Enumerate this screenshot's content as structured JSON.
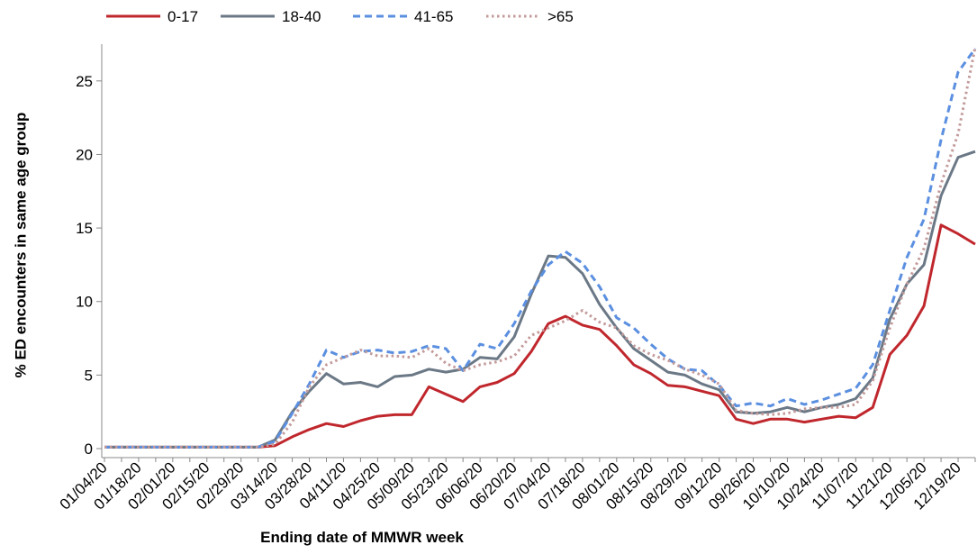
{
  "chart_data": {
    "type": "line",
    "x_label": "Ending date of MMWR week",
    "y_label": "% ED encounters in same age group",
    "categories": [
      "01/04/20",
      null,
      "01/18/20",
      null,
      "02/01/20",
      null,
      "02/15/20",
      null,
      "02/29/20",
      null,
      "03/14/20",
      null,
      "03/28/20",
      null,
      "04/11/20",
      null,
      "04/25/20",
      null,
      "05/09/20",
      null,
      "05/23/20",
      null,
      "06/06/20",
      null,
      "06/20/20",
      null,
      "07/04/20",
      null,
      "07/18/20",
      null,
      "08/01/20",
      null,
      "08/15/20",
      null,
      "08/29/20",
      null,
      "09/12/20",
      null,
      "09/26/20",
      null,
      "10/10/20",
      null,
      "10/24/20",
      null,
      "11/07/20",
      null,
      "11/21/20",
      null,
      "12/05/20",
      null,
      "12/19/20",
      null
    ],
    "series": [
      {
        "name": "0-17",
        "color": "#c0272d",
        "style": "solid",
        "values": [
          0.1,
          0.1,
          0.1,
          0.1,
          0.1,
          0.1,
          0.1,
          0.1,
          0.1,
          0.1,
          0.2,
          0.8,
          1.3,
          1.7,
          1.5,
          1.9,
          2.2,
          2.3,
          2.3,
          4.2,
          3.7,
          3.2,
          4.2,
          4.5,
          5.1,
          6.6,
          8.5,
          9.0,
          8.4,
          8.1,
          7.0,
          5.7,
          5.1,
          4.3,
          4.2,
          3.9,
          3.6,
          2.0,
          1.7,
          2.0,
          2.0,
          1.8,
          2.0,
          2.2,
          2.1,
          2.8,
          6.4,
          7.7,
          9.7,
          15.2,
          14.6,
          13.9
        ]
      },
      {
        "name": "18-40",
        "color": "#6b7886",
        "style": "solid",
        "values": [
          0.1,
          0.1,
          0.1,
          0.1,
          0.1,
          0.1,
          0.1,
          0.1,
          0.1,
          0.1,
          0.6,
          2.5,
          3.9,
          5.1,
          4.4,
          4.5,
          4.2,
          4.9,
          5.0,
          5.4,
          5.2,
          5.4,
          6.2,
          6.1,
          7.6,
          10.5,
          13.1,
          13.0,
          11.9,
          9.8,
          8.2,
          6.8,
          6.0,
          5.2,
          5.0,
          4.4,
          4.0,
          2.5,
          2.4,
          2.5,
          2.8,
          2.5,
          2.8,
          3.0,
          3.4,
          4.8,
          8.8,
          11.2,
          12.5,
          17.2,
          19.8,
          20.2
        ]
      },
      {
        "name": "41-65",
        "color": "#5b8fe0",
        "style": "dashed",
        "values": [
          0.1,
          0.1,
          0.1,
          0.1,
          0.1,
          0.1,
          0.1,
          0.1,
          0.1,
          0.1,
          0.5,
          2.4,
          4.4,
          6.7,
          6.2,
          6.6,
          6.7,
          6.5,
          6.6,
          7.0,
          6.8,
          5.3,
          7.1,
          6.8,
          8.5,
          10.7,
          12.5,
          13.4,
          12.6,
          11.0,
          8.9,
          8.2,
          7.1,
          6.1,
          5.4,
          5.3,
          4.3,
          2.9,
          3.1,
          2.9,
          3.4,
          3.0,
          3.3,
          3.7,
          4.1,
          5.7,
          9.4,
          13.0,
          15.6,
          21.0,
          25.6,
          27.2
        ]
      },
      {
        "name": ">65",
        "color": "#c39a9a",
        "style": "dotted",
        "values": [
          0.1,
          0.1,
          0.1,
          0.1,
          0.1,
          0.1,
          0.1,
          0.1,
          0.1,
          0.1,
          0.3,
          1.8,
          4.2,
          5.7,
          6.2,
          6.7,
          6.3,
          6.3,
          6.2,
          6.8,
          5.8,
          5.3,
          5.7,
          5.9,
          6.3,
          7.7,
          8.2,
          8.7,
          9.4,
          8.6,
          8.2,
          7.0,
          6.4,
          6.0,
          5.4,
          5.0,
          4.4,
          2.6,
          2.4,
          2.3,
          2.4,
          2.7,
          2.8,
          2.8,
          3.0,
          4.6,
          8.2,
          11.2,
          13.6,
          18.0,
          21.4,
          27.3
        ]
      }
    ],
    "ylim": [
      0,
      27.5
    ],
    "yticks": [
      0,
      5,
      10,
      15,
      20,
      25
    ],
    "legend": "top"
  }
}
